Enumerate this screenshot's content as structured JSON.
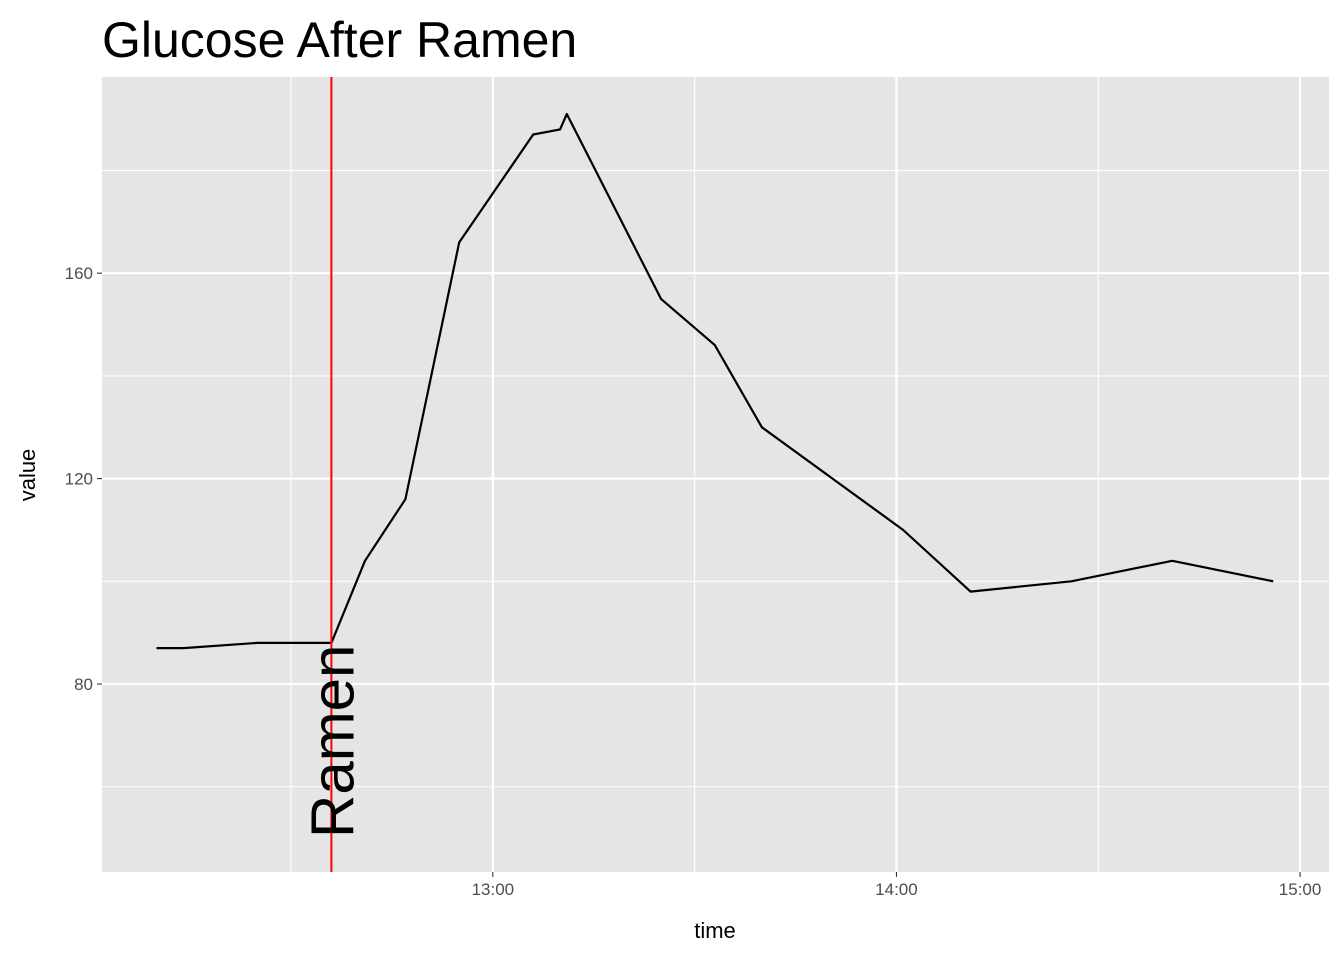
{
  "chart_data": {
    "type": "line",
    "title": "Glucose After Ramen",
    "xlabel": "time",
    "ylabel": "value",
    "xlim": [
      "12:02",
      "15:04"
    ],
    "ylim": [
      43.4,
      198.2
    ],
    "x_ticks": [
      "13:00",
      "14:00",
      "15:00"
    ],
    "y_ticks": [
      80,
      120,
      160
    ],
    "grid": true,
    "line_color": "#000000",
    "background_color": "#e5e5e5",
    "series": [
      {
        "x": [
          "12:10",
          "12:14",
          "12:25",
          "12:36",
          "12:41",
          "12:47",
          "12:55",
          "13:06",
          "13:10",
          "13:11",
          "13:25",
          "13:33",
          "13:40",
          "14:01",
          "14:11",
          "14:26",
          "14:41",
          "14:56"
        ],
        "values": [
          87,
          87,
          88,
          88,
          104,
          116,
          166,
          187,
          188,
          191,
          155,
          146,
          130,
          110,
          98,
          100,
          104,
          100
        ]
      }
    ],
    "annotations": [
      {
        "type": "vline",
        "x": "12:36",
        "color": "#ff0000",
        "label": "Ramen"
      }
    ]
  }
}
